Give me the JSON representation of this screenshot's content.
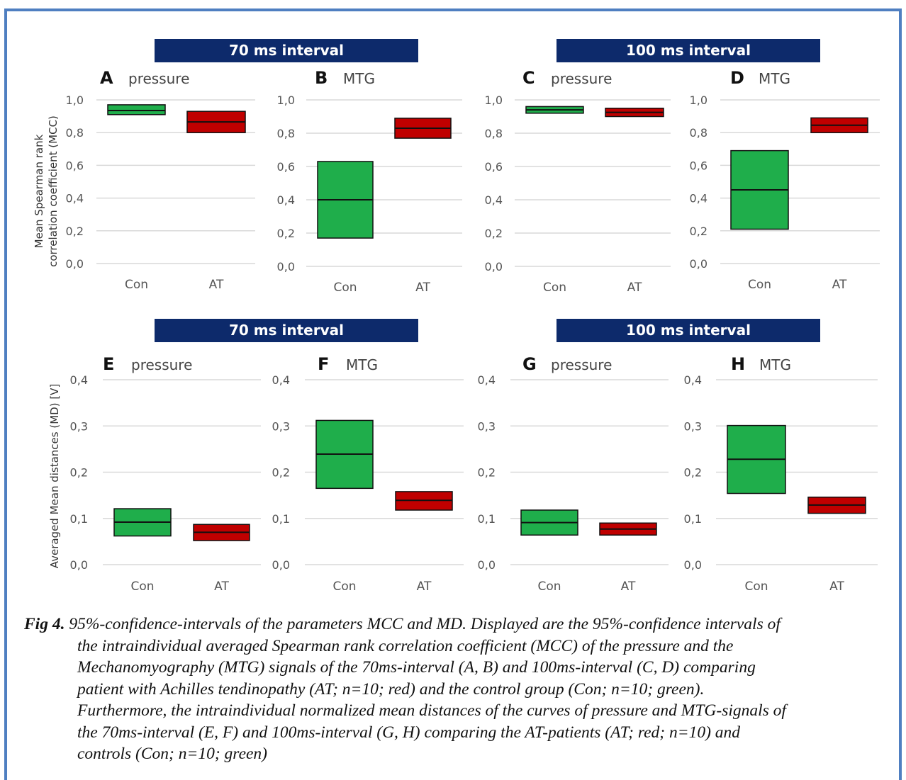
{
  "banners": [
    "70 ms interval",
    "100 ms interval",
    "70 ms interval",
    "100 ms interval"
  ],
  "ylabels": {
    "top": [
      "Mean Spearman rank",
      "correlation coefficient (MCC)"
    ],
    "bottom": "Averaged Mean distances (MD) [V]"
  },
  "colors": {
    "con": "#1fae4b",
    "at": "#c00000",
    "banner": "#0d2a6b",
    "frame": "#4f7fc1"
  },
  "chart_data": [
    {
      "type": "bar",
      "panel": "A",
      "title": "pressure",
      "categories": [
        "Con",
        "AT"
      ],
      "ylim": [
        0,
        1
      ],
      "ticks": [
        "0,0",
        "0,2",
        "0,4",
        "0,6",
        "0,8",
        "1,0"
      ],
      "series": [
        {
          "name": "Con",
          "low": 0.91,
          "mean": 0.935,
          "high": 0.97
        },
        {
          "name": "AT",
          "low": 0.8,
          "mean": 0.865,
          "high": 0.93
        }
      ]
    },
    {
      "type": "bar",
      "panel": "B",
      "title": "MTG",
      "categories": [
        "Con",
        "AT"
      ],
      "ylim": [
        0,
        1
      ],
      "ticks": [
        "0,0",
        "0,2",
        "0,4",
        "0,6",
        "0,8",
        "1,0"
      ],
      "series": [
        {
          "name": "Con",
          "low": 0.17,
          "mean": 0.4,
          "high": 0.63
        },
        {
          "name": "AT",
          "low": 0.77,
          "mean": 0.83,
          "high": 0.89
        }
      ]
    },
    {
      "type": "bar",
      "panel": "C",
      "title": "pressure",
      "categories": [
        "Con",
        "AT"
      ],
      "ylim": [
        0,
        1
      ],
      "ticks": [
        "0,0",
        "0,2",
        "0,4",
        "0,6",
        "0,8",
        "1,0"
      ],
      "series": [
        {
          "name": "Con",
          "low": 0.92,
          "mean": 0.94,
          "high": 0.96
        },
        {
          "name": "AT",
          "low": 0.9,
          "mean": 0.925,
          "high": 0.95
        }
      ]
    },
    {
      "type": "bar",
      "panel": "D",
      "title": "MTG",
      "categories": [
        "Con",
        "AT"
      ],
      "ylim": [
        0,
        1
      ],
      "ticks": [
        "0,0",
        "0,2",
        "0,4",
        "0,6",
        "0,8",
        "1,0"
      ],
      "series": [
        {
          "name": "Con",
          "low": 0.21,
          "mean": 0.45,
          "high": 0.69
        },
        {
          "name": "AT",
          "low": 0.8,
          "mean": 0.845,
          "high": 0.89
        }
      ]
    },
    {
      "type": "bar",
      "panel": "E",
      "title": "pressure",
      "categories": [
        "Con",
        "AT"
      ],
      "ylim": [
        0,
        0.4
      ],
      "ticks": [
        "0,0",
        "0,1",
        "0,2",
        "0,3",
        "0,4"
      ],
      "series": [
        {
          "name": "Con",
          "low": 0.062,
          "mean": 0.092,
          "high": 0.121
        },
        {
          "name": "AT",
          "low": 0.052,
          "mean": 0.07,
          "high": 0.087
        }
      ]
    },
    {
      "type": "bar",
      "panel": "F",
      "title": "MTG",
      "categories": [
        "Con",
        "AT"
      ],
      "ylim": [
        0,
        0.4
      ],
      "ticks": [
        "0,0",
        "0,1",
        "0,2",
        "0,3",
        "0,4"
      ],
      "series": [
        {
          "name": "Con",
          "low": 0.165,
          "mean": 0.239,
          "high": 0.312
        },
        {
          "name": "AT",
          "low": 0.118,
          "mean": 0.139,
          "high": 0.158
        }
      ]
    },
    {
      "type": "bar",
      "panel": "G",
      "title": "pressure",
      "categories": [
        "Con",
        "AT"
      ],
      "ylim": [
        0,
        0.4
      ],
      "ticks": [
        "0,0",
        "0,1",
        "0,2",
        "0,3",
        "0,4"
      ],
      "series": [
        {
          "name": "Con",
          "low": 0.064,
          "mean": 0.091,
          "high": 0.118
        },
        {
          "name": "AT",
          "low": 0.064,
          "mean": 0.077,
          "high": 0.09
        }
      ]
    },
    {
      "type": "bar",
      "panel": "H",
      "title": "MTG",
      "categories": [
        "Con",
        "AT"
      ],
      "ylim": [
        0,
        0.4
      ],
      "ticks": [
        "0,0",
        "0,1",
        "0,2",
        "0,3",
        "0,4"
      ],
      "series": [
        {
          "name": "Con",
          "low": 0.154,
          "mean": 0.228,
          "high": 0.301
        },
        {
          "name": "AT",
          "low": 0.111,
          "mean": 0.129,
          "high": 0.146
        }
      ]
    }
  ],
  "caption": {
    "lead": "Fig 4.",
    "line1": "95%-confidence-intervals of the parameters MCC and MD. Displayed are the 95%-confidence intervals of",
    "lines": [
      "the intraindividual averaged Spearman rank correlation coefficient (MCC) of the pressure and the",
      "Mechanomyography (MTG) signals of the 70ms-interval (A, B) and 100ms-interval (C, D) comparing",
      "patient with Achilles tendinopathy (AT; n=10; red) and the control group (Con; n=10; green).",
      "Furthermore, the intraindividual normalized mean distances of the curves of pressure and MTG-signals of",
      "the 70ms-interval (E, F) and 100ms-interval (G, H) comparing the AT-patients (AT; red; n=10) and",
      "controls (Con; n=10; green)"
    ]
  }
}
